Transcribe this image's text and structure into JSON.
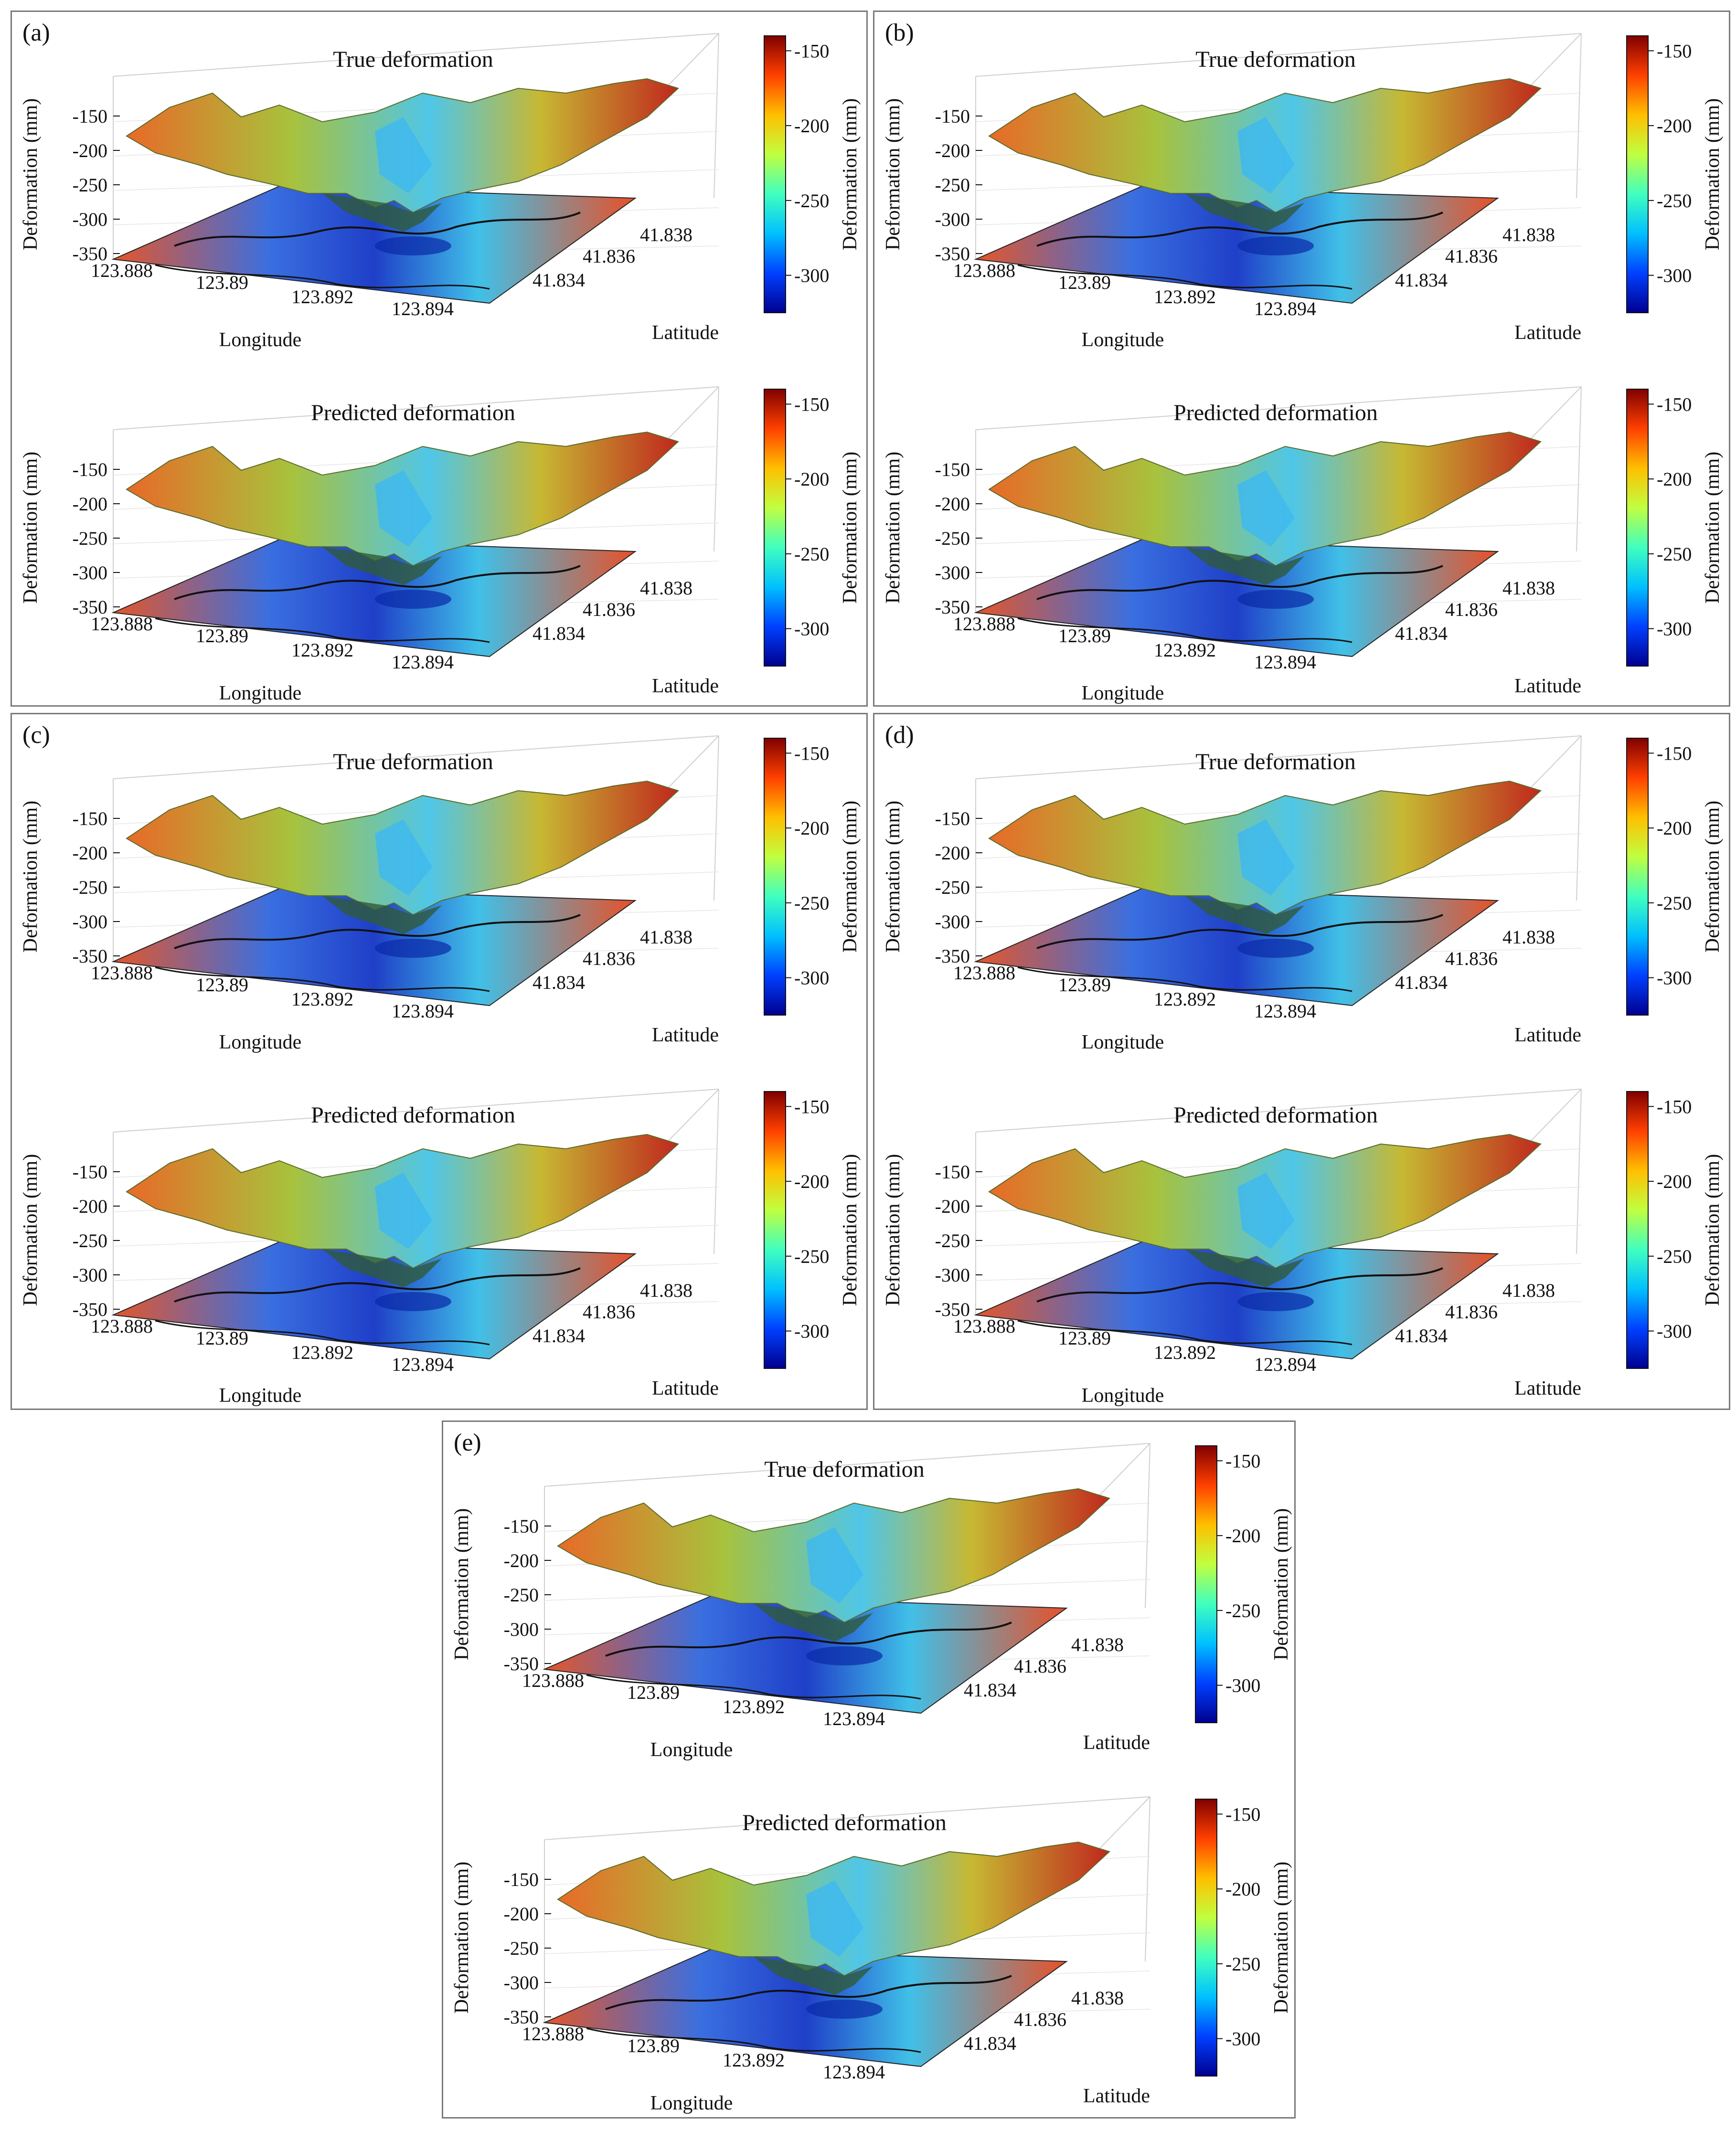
{
  "panels": [
    {
      "label": "(a)",
      "top": {
        "title": "True deformation"
      },
      "bottom": {
        "title": "Predicted deformation"
      }
    },
    {
      "label": "(b)",
      "top": {
        "title": "True deformation"
      },
      "bottom": {
        "title": "Predicted deformation"
      }
    },
    {
      "label": "(c)",
      "top": {
        "title": "True deformation"
      },
      "bottom": {
        "title": "Predicted deformation"
      }
    },
    {
      "label": "(d)",
      "top": {
        "title": "True deformation"
      },
      "bottom": {
        "title": "Predicted deformation"
      }
    },
    {
      "label": "(e)",
      "top": {
        "title": "True deformation"
      },
      "bottom": {
        "title": "Predicted deformation"
      }
    }
  ],
  "chart_data": {
    "type": "surface3d",
    "zlabel": "Deformation (mm)",
    "xlabel": "Longitude",
    "ylabel": "Latitude",
    "zticks": [
      -150,
      -200,
      -250,
      -300,
      -350
    ],
    "xticks": [
      "123.888",
      "123.89",
      "123.892",
      "123.894"
    ],
    "yticks": [
      "41.834",
      "41.836",
      "41.838"
    ],
    "colorbar": {
      "label": "Deformation (mm)",
      "ticks": [
        -150,
        -200,
        -250,
        -300
      ],
      "range": [
        -325,
        -140
      ]
    },
    "colormap": [
      "#00008f",
      "#0040ff",
      "#00c0ff",
      "#40ffbf",
      "#c0ff40",
      "#ffbf00",
      "#ff4000",
      "#800000"
    ],
    "grid": true
  }
}
